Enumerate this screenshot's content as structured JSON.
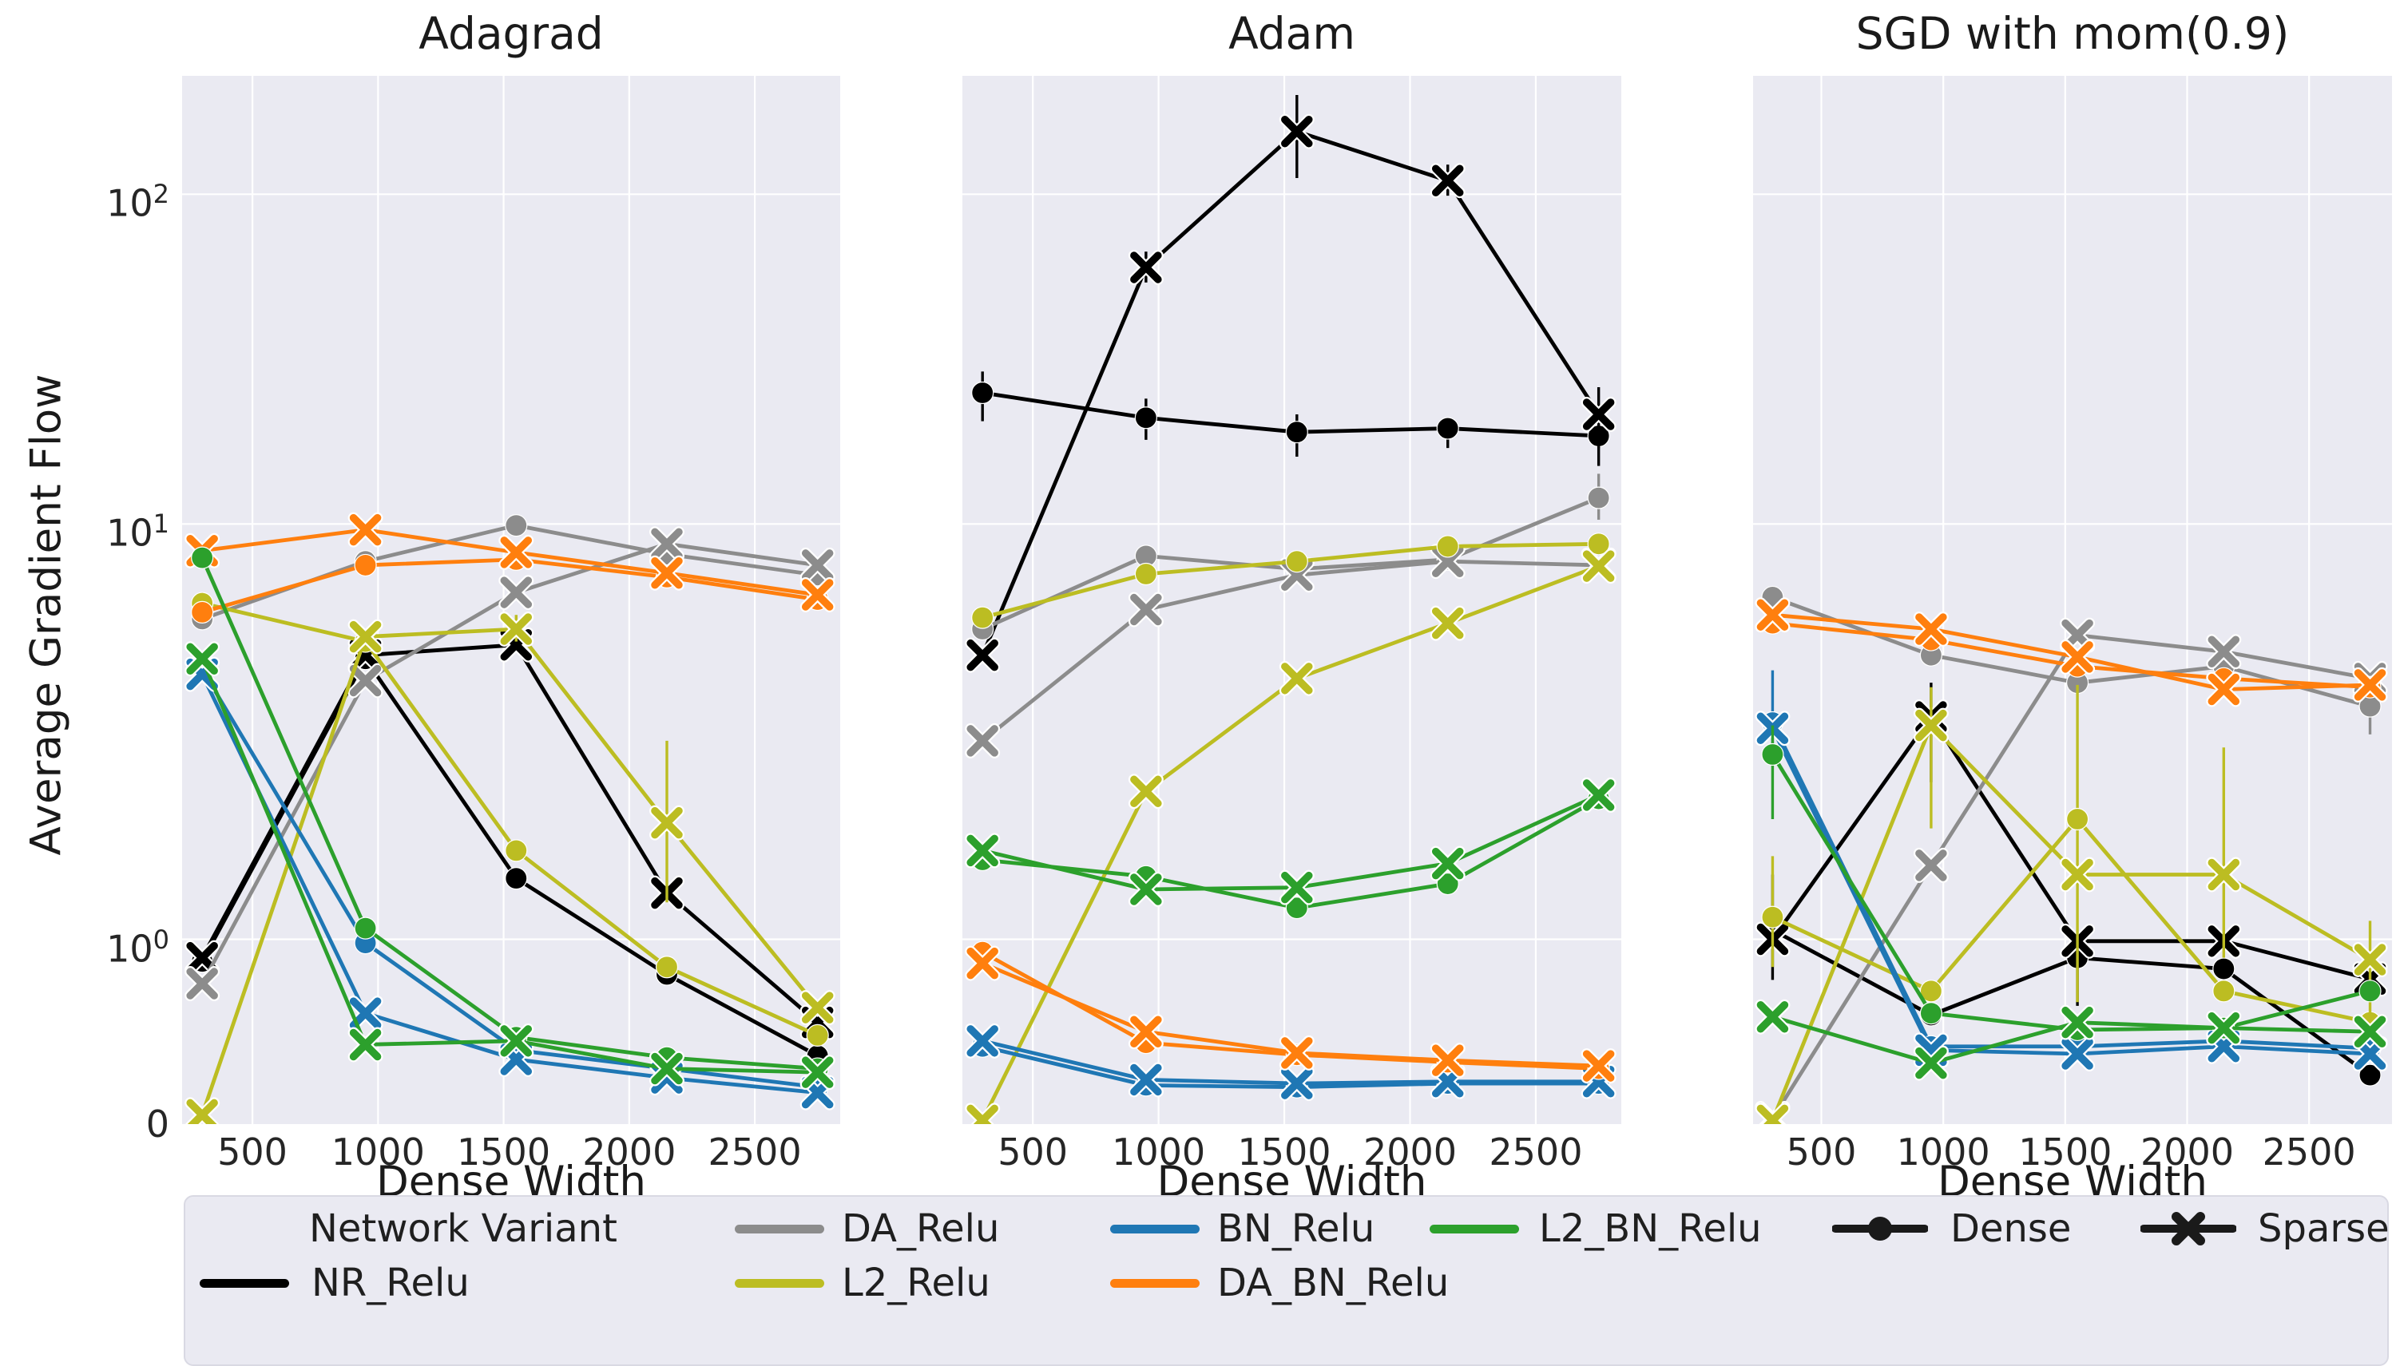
{
  "chart_data": {
    "type": "line",
    "title": "",
    "xlabel": "Dense Width",
    "ylabel": "Average Gradient Flow",
    "yscale": {
      "type": "symlog",
      "linthresh": 2
    },
    "xlim": [
      220,
      2840
    ],
    "ylim": [
      0,
      230
    ],
    "grid": true,
    "x": [
      300,
      950,
      1550,
      2150,
      2750
    ],
    "xticks": [
      500,
      1000,
      1500,
      2000,
      2500
    ],
    "yticks": [
      {
        "base": "10",
        "sup": "2",
        "value": 100
      },
      {
        "base": "10",
        "sup": "1",
        "value": 10
      },
      {
        "base": "10",
        "sup": "0",
        "value": 1
      },
      {
        "base": "0",
        "sup": "",
        "value": 0
      }
    ],
    "variants": [
      {
        "name": "NR_Relu",
        "color": "#000000"
      },
      {
        "name": "DA_Relu",
        "color": "#8c8c8c"
      },
      {
        "name": "L2_Relu",
        "color": "#bcbd22"
      },
      {
        "name": "BN_Relu",
        "color": "#1f77b4"
      },
      {
        "name": "DA_BN_Relu",
        "color": "#ff7f0e"
      },
      {
        "name": "L2_BN_Relu",
        "color": "#2ca02c"
      }
    ],
    "markers": {
      "dense": "circle",
      "sparse": "x"
    },
    "panels": [
      {
        "title": "Adagrad",
        "series": [
          {
            "variant": "NR_Relu",
            "style": "dense",
            "values": [
              0.88,
              3.9,
              1.33,
              0.81,
              0.37
            ]
          },
          {
            "variant": "NR_Relu",
            "style": "sparse",
            "values": [
              0.9,
              4.0,
              4.3,
              1.25,
              0.55
            ]
          },
          {
            "variant": "DA_Relu",
            "style": "dense",
            "values": [
              5.15,
              7.7,
              9.9,
              8.1,
              7.0
            ]
          },
          {
            "variant": "DA_Relu",
            "style": "sparse",
            "values": [
              0.76,
              3.35,
              6.2,
              8.7,
              7.5
            ]
          },
          {
            "variant": "L2_Relu",
            "style": "dense",
            "values": [
              5.75,
              4.4,
              1.48,
              0.85,
              0.48
            ]
          },
          {
            "variant": "L2_Relu",
            "style": "sparse",
            "values": [
              0.05,
              4.55,
              4.8,
              1.63,
              0.63
            ],
            "err": [
              null,
              null,
              [
                4.4,
                5.3
              ],
              [
                1.2,
                2.2
              ],
              null
            ]
          },
          {
            "variant": "BN_Relu",
            "style": "dense",
            "values": [
              3.62,
              0.98,
              0.4,
              0.3,
              0.2
            ]
          },
          {
            "variant": "BN_Relu",
            "style": "sparse",
            "values": [
              3.5,
              0.6,
              0.35,
              0.25,
              0.17
            ]
          },
          {
            "variant": "DA_BN_Relu",
            "style": "dense",
            "values": [
              5.4,
              7.5,
              7.8,
              6.9,
              5.9
            ]
          },
          {
            "variant": "DA_BN_Relu",
            "style": "sparse",
            "values": [
              8.3,
              9.6,
              8.2,
              7.1,
              6.1
            ]
          },
          {
            "variant": "L2_BN_Relu",
            "style": "dense",
            "values": [
              7.9,
              1.06,
              0.47,
              0.36,
              0.3
            ]
          },
          {
            "variant": "L2_BN_Relu",
            "style": "sparse",
            "values": [
              3.9,
              0.43,
              0.45,
              0.3,
              0.28
            ]
          }
        ]
      },
      {
        "title": "Adam",
        "series": [
          {
            "variant": "NR_Relu",
            "style": "dense",
            "values": [
              25,
              21,
              19,
              19.5,
              18.5
            ],
            "err": [
              [
                20.5,
                29
              ],
              [
                18,
                24
              ],
              [
                16,
                21.5
              ],
              [
                17,
                21
              ],
              [
                15,
                21
              ]
            ]
          },
          {
            "variant": "NR_Relu",
            "style": "sparse",
            "values": [
              4.0,
              60,
              155,
              110,
              21.5
            ],
            "err": [
              null,
              [
                54,
                67
              ],
              [
                112,
                200
              ],
              [
                99,
                123
              ],
              [
                17,
                26
              ]
            ]
          },
          {
            "variant": "DA_Relu",
            "style": "dense",
            "values": [
              4.8,
              8.0,
              7.3,
              7.8,
              12
            ],
            "err": [
              null,
              null,
              null,
              null,
              [
                10.3,
                14.2
              ]
            ]
          },
          {
            "variant": "DA_Relu",
            "style": "sparse",
            "values": [
              2.2,
              5.5,
              7.0,
              7.7,
              7.5
            ]
          },
          {
            "variant": "L2_Relu",
            "style": "dense",
            "values": [
              5.2,
              7.05,
              7.7,
              8.55,
              8.7
            ]
          },
          {
            "variant": "L2_Relu",
            "style": "sparse",
            "values": [
              0.02,
              1.8,
              3.4,
              5.0,
              7.45
            ]
          },
          {
            "variant": "BN_Relu",
            "style": "dense",
            "values": [
              0.42,
              0.21,
              0.2,
              0.22,
              0.22
            ]
          },
          {
            "variant": "BN_Relu",
            "style": "sparse",
            "values": [
              0.45,
              0.24,
              0.22,
              0.23,
              0.23
            ]
          },
          {
            "variant": "DA_BN_Relu",
            "style": "dense",
            "values": [
              0.93,
              0.44,
              0.375,
              0.335,
              0.3
            ]
          },
          {
            "variant": "DA_BN_Relu",
            "style": "sparse",
            "values": [
              0.87,
              0.5,
              0.385,
              0.345,
              0.315
            ]
          },
          {
            "variant": "L2_BN_Relu",
            "style": "dense",
            "values": [
              1.43,
              1.34,
              1.17,
              1.3,
              1.76
            ]
          },
          {
            "variant": "L2_BN_Relu",
            "style": "sparse",
            "values": [
              1.48,
              1.27,
              1.28,
              1.41,
              1.78
            ]
          }
        ]
      },
      {
        "title": "SGD with mom(0.9)",
        "series": [
          {
            "variant": "NR_Relu",
            "style": "dense",
            "values": [
              1.05,
              0.59,
              0.9,
              0.84,
              0.265
            ],
            "err": [
              [
                0.78,
                1.35
              ],
              null,
              null,
              null,
              null
            ]
          },
          {
            "variant": "NR_Relu",
            "style": "sparse",
            "values": [
              1.0,
              2.6,
              0.99,
              0.99,
              0.785
            ],
            "err": [
              null,
              [
                1.85,
                3.3
              ],
              [
                0.64,
                1.0
              ],
              null,
              null
            ]
          },
          {
            "variant": "DA_Relu",
            "style": "dense",
            "values": [
              6.0,
              4.0,
              3.3,
              3.7,
              2.8
            ],
            "err": [
              null,
              null,
              null,
              null,
              [
                2.3,
                3.4
              ]
            ]
          },
          {
            "variant": "DA_Relu",
            "style": "sparse",
            "values": [
              0.03,
              1.4,
              4.6,
              4.1,
              3.4
            ]
          },
          {
            "variant": "L2_Relu",
            "style": "dense",
            "values": [
              1.12,
              0.72,
              1.65,
              0.72,
              0.55
            ],
            "err": [
              [
                0.85,
                1.45
              ],
              null,
              [
                0.66,
                3.25
              ],
              null,
              null
            ]
          },
          {
            "variant": "L2_Relu",
            "style": "sparse",
            "values": [
              0.02,
              2.45,
              1.35,
              1.35,
              0.89
            ],
            "err": [
              null,
              [
                1.6,
                3.2
              ],
              null,
              [
                0.9,
                2.1
              ],
              [
                0.55,
                1.1
              ]
            ]
          },
          {
            "variant": "BN_Relu",
            "style": "dense",
            "values": [
              2.5,
              0.42,
              0.42,
              0.45,
              0.41
            ],
            "err": [
              [
                2.05,
                3.6
              ],
              null,
              null,
              null,
              null
            ]
          },
          {
            "variant": "BN_Relu",
            "style": "sparse",
            "values": [
              2.4,
              0.4,
              0.38,
              0.42,
              0.38
            ]
          },
          {
            "variant": "DA_BN_Relu",
            "style": "dense",
            "values": [
              5.0,
              4.45,
              3.7,
              3.4,
              3.2
            ]
          },
          {
            "variant": "DA_BN_Relu",
            "style": "sparse",
            "values": [
              5.3,
              4.8,
              3.95,
              3.15,
              3.25
            ]
          },
          {
            "variant": "L2_BN_Relu",
            "style": "dense",
            "values": [
              2.0,
              0.6,
              0.51,
              0.52,
              0.72
            ],
            "err": [
              [
                1.65,
                2.45
              ],
              null,
              null,
              null,
              null
            ]
          },
          {
            "variant": "L2_BN_Relu",
            "style": "sparse",
            "values": [
              0.58,
              0.33,
              0.55,
              0.52,
              0.5
            ]
          }
        ]
      }
    ],
    "legend": {
      "title": "Network Variant",
      "markers": [
        {
          "label": "Dense"
        },
        {
          "label": "Sparse"
        }
      ]
    },
    "style": {
      "plot_bg": "#eaeaf2",
      "grid_color": "#ffffff",
      "text_color": "#262626",
      "legend_bg": "#eaeaf2",
      "marker_legend_color": "#1a1a1a"
    }
  }
}
